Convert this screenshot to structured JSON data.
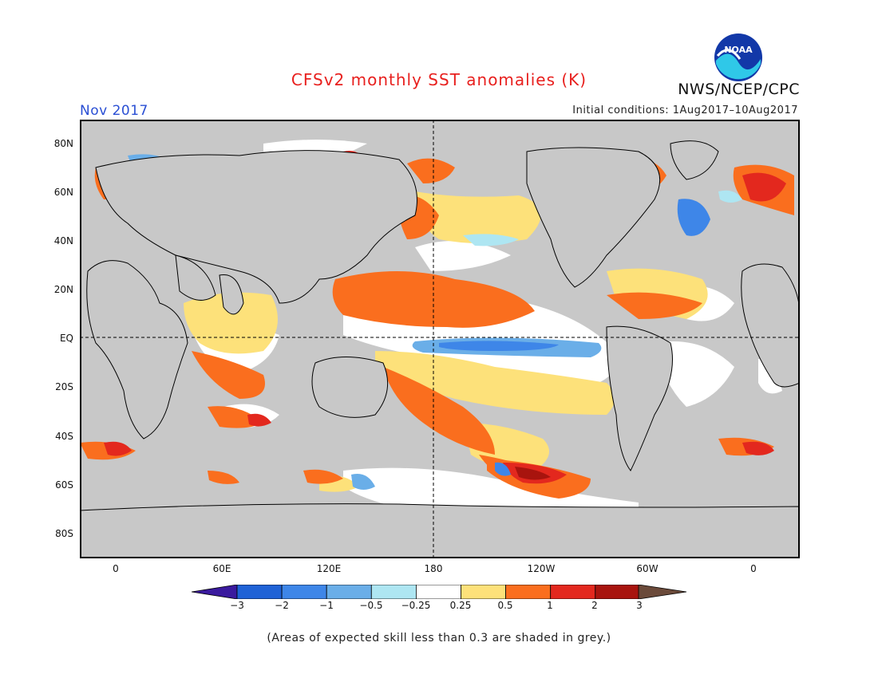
{
  "header": {
    "title": "CFSv2 monthly SST anomalies (K)",
    "agency": "NWS/NCEP/CPC",
    "logo_text": "NOAA",
    "valid_month": "Nov 2017",
    "initial_conditions": "Initial conditions: 1Aug2017–10Aug2017"
  },
  "axes": {
    "y_ticks": [
      "80N",
      "60N",
      "40N",
      "20N",
      "EQ",
      "20S",
      "40S",
      "60S",
      "80S"
    ],
    "x_ticks": [
      "0",
      "60E",
      "120E",
      "180",
      "120W",
      "60W",
      "0"
    ]
  },
  "colorbar": {
    "tick_labels": [
      "−3",
      "−2",
      "−1",
      "−0.5",
      "−0.25",
      "0.25",
      "0.5",
      "1",
      "2",
      "3"
    ],
    "colors": [
      "#3a1a9e",
      "#1f62d6",
      "#3e86e8",
      "#6aaee8",
      "#aee6f2",
      "#ffffff",
      "#fde17a",
      "#fa6e1e",
      "#e3281e",
      "#a8140e",
      "#6b4a3a"
    ]
  },
  "footnote": "(Areas of expected skill less than 0.3 are shaded in grey.)",
  "colors": {
    "title": "#e8201e",
    "month": "#2a4fd4",
    "grey_mask": "#c8c8c8"
  }
}
